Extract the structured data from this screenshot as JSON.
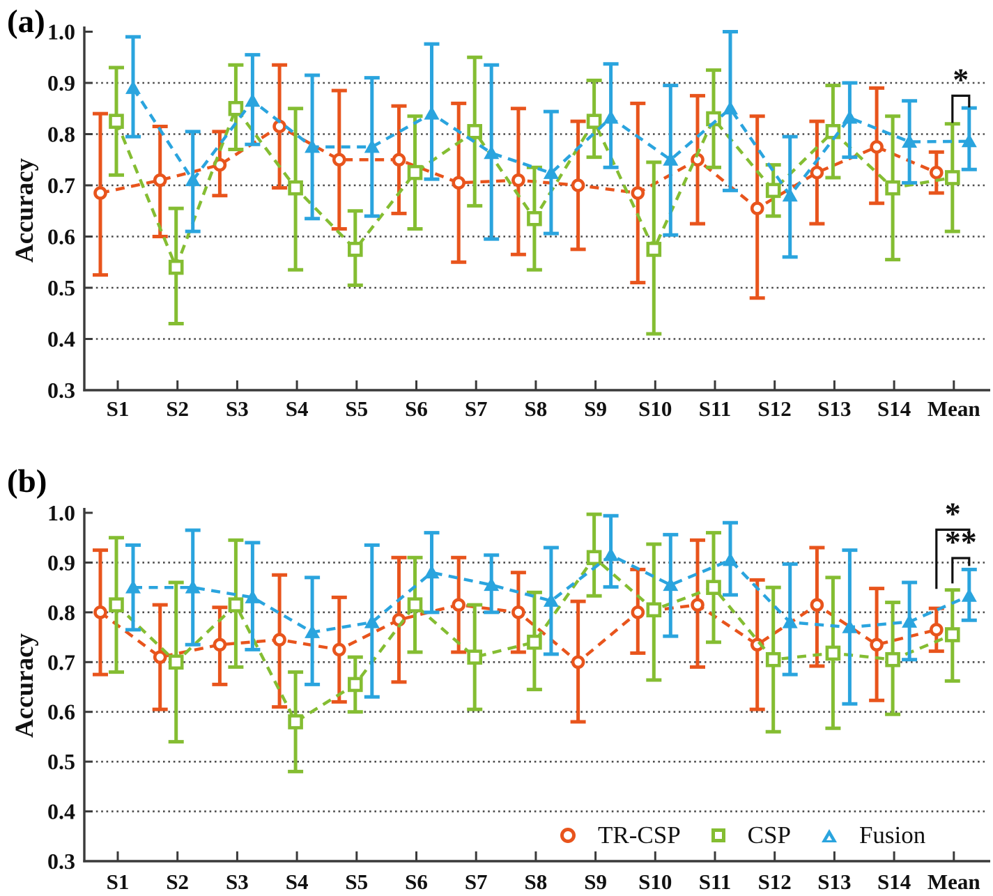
{
  "figure_titles": {
    "panel_a": "(a)",
    "panel_b": "(b)"
  },
  "ylabel": "Accuracy",
  "colors": {
    "tr_csp": "#e8541c",
    "csp": "#84bd32",
    "fusion": "#2aa4de",
    "axis": "#3a3a3a",
    "grid": "#4a4a4a",
    "significance": "#111111",
    "tick_text": "#111111"
  },
  "legend": {
    "items": [
      {
        "label": "TR-CSP",
        "marker": "circle-icon",
        "color": "#e8541c"
      },
      {
        "label": "CSP",
        "marker": "square-icon",
        "color": "#84bd32"
      },
      {
        "label": "Fusion",
        "marker": "triangle-icon",
        "color": "#2aa4de"
      }
    ]
  },
  "chart_data": [
    {
      "panel": "a",
      "type": "line",
      "subtype": "errorbar-line",
      "title": "(a)",
      "xlabel": "",
      "ylabel": "Accuracy",
      "ylim": [
        0.3,
        1.0
      ],
      "yticks": [
        1.0,
        0.9,
        0.8,
        0.7,
        0.6,
        0.5,
        0.4,
        0.3
      ],
      "ytick_labels": [
        "1.0",
        "0.9",
        "0.8",
        "0.7",
        "0.6",
        "0.5",
        "0.4",
        "0.3"
      ],
      "grid_lines": [
        0.9,
        0.8,
        0.7,
        0.6,
        0.5,
        0.4
      ],
      "grid_style": "dotted-horizontal",
      "legend_position": "none",
      "categories": [
        "S1",
        "S2",
        "S3",
        "S4",
        "S5",
        "S6",
        "S7",
        "S8",
        "S9",
        "S10",
        "S11",
        "S12",
        "S13",
        "S14",
        "Mean"
      ],
      "series": [
        {
          "name": "TR-CSP",
          "marker": "circle",
          "color": "#e8541c",
          "values": [
            0.685,
            0.71,
            0.74,
            0.815,
            0.75,
            0.75,
            0.705,
            0.71,
            0.7,
            0.685,
            0.75,
            0.655,
            0.725,
            0.775,
            0.725
          ],
          "err_low": [
            0.525,
            0.6,
            0.68,
            0.695,
            0.615,
            0.645,
            0.55,
            0.565,
            0.575,
            0.51,
            0.625,
            0.48,
            0.625,
            0.665,
            0.685
          ],
          "err_high": [
            0.84,
            0.815,
            0.805,
            0.935,
            0.885,
            0.855,
            0.86,
            0.85,
            0.825,
            0.86,
            0.875,
            0.835,
            0.825,
            0.89,
            0.765
          ]
        },
        {
          "name": "CSP",
          "marker": "square",
          "color": "#84bd32",
          "values": [
            0.825,
            0.54,
            0.85,
            0.695,
            0.575,
            0.725,
            0.805,
            0.635,
            0.825,
            0.575,
            0.83,
            0.69,
            0.805,
            0.695,
            0.715
          ],
          "err_low": [
            0.72,
            0.43,
            0.77,
            0.535,
            0.505,
            0.615,
            0.66,
            0.535,
            0.755,
            0.41,
            0.735,
            0.64,
            0.715,
            0.555,
            0.61
          ],
          "err_high": [
            0.93,
            0.655,
            0.935,
            0.85,
            0.65,
            0.835,
            0.95,
            0.735,
            0.905,
            0.745,
            0.925,
            0.74,
            0.895,
            0.835,
            0.82
          ]
        },
        {
          "name": "Fusion",
          "marker": "triangle",
          "color": "#2aa4de",
          "values": [
            0.89,
            0.71,
            0.865,
            0.775,
            0.775,
            0.84,
            0.763,
            0.724,
            0.832,
            0.75,
            0.85,
            0.68,
            0.832,
            0.785,
            0.786
          ],
          "err_low": [
            0.795,
            0.61,
            0.78,
            0.635,
            0.64,
            0.712,
            0.595,
            0.606,
            0.735,
            0.603,
            0.69,
            0.56,
            0.755,
            0.705,
            0.731
          ],
          "err_high": [
            0.99,
            0.805,
            0.955,
            0.915,
            0.91,
            0.976,
            0.935,
            0.844,
            0.937,
            0.895,
            1.0,
            0.795,
            0.9,
            0.865,
            0.851
          ]
        }
      ],
      "significance": [
        {
          "label": "*",
          "category": 14,
          "from_series": 1,
          "to_series": 2,
          "bar_y": 0.875,
          "from_drop": 0.822,
          "to_drop": 0.852
        }
      ]
    },
    {
      "panel": "b",
      "type": "line",
      "subtype": "errorbar-line",
      "title": "(b)",
      "xlabel": "",
      "ylabel": "Accuracy",
      "ylim": [
        0.3,
        1.0
      ],
      "yticks": [
        1.0,
        0.9,
        0.8,
        0.7,
        0.6,
        0.5,
        0.4,
        0.3
      ],
      "ytick_labels": [
        "1.0",
        "0.9",
        "0.8",
        "0.7",
        "0.6",
        "0.5",
        "0.4",
        "0.3"
      ],
      "grid_lines": [
        0.9,
        0.8,
        0.7,
        0.6,
        0.5,
        0.4
      ],
      "grid_style": "dotted-horizontal",
      "legend_position": "bottom-right-inside",
      "categories": [
        "S1",
        "S2",
        "S3",
        "S4",
        "S5",
        "S6",
        "S7",
        "S8",
        "S9",
        "S10",
        "S11",
        "S12",
        "S13",
        "S14",
        "Mean"
      ],
      "series": [
        {
          "name": "TR-CSP",
          "marker": "circle",
          "color": "#e8541c",
          "values": [
            0.8,
            0.71,
            0.735,
            0.745,
            0.725,
            0.785,
            0.815,
            0.8,
            0.7,
            0.8,
            0.815,
            0.735,
            0.815,
            0.735,
            0.765
          ],
          "err_low": [
            0.675,
            0.605,
            0.655,
            0.61,
            0.62,
            0.66,
            0.72,
            0.72,
            0.58,
            0.718,
            0.69,
            0.605,
            0.692,
            0.623,
            0.722
          ],
          "err_high": [
            0.925,
            0.815,
            0.81,
            0.875,
            0.83,
            0.91,
            0.91,
            0.88,
            0.822,
            0.886,
            0.945,
            0.865,
            0.93,
            0.848,
            0.808
          ]
        },
        {
          "name": "CSP",
          "marker": "square",
          "color": "#84bd32",
          "values": [
            0.815,
            0.7,
            0.815,
            0.58,
            0.655,
            0.815,
            0.71,
            0.74,
            0.91,
            0.805,
            0.85,
            0.705,
            0.718,
            0.705,
            0.755
          ],
          "err_low": [
            0.68,
            0.54,
            0.69,
            0.48,
            0.6,
            0.72,
            0.605,
            0.645,
            0.833,
            0.664,
            0.74,
            0.56,
            0.567,
            0.595,
            0.662
          ],
          "err_high": [
            0.95,
            0.86,
            0.945,
            0.68,
            0.71,
            0.91,
            0.815,
            0.84,
            0.997,
            0.937,
            0.96,
            0.85,
            0.87,
            0.82,
            0.845
          ]
        },
        {
          "name": "Fusion",
          "marker": "triangle",
          "color": "#2aa4de",
          "values": [
            0.85,
            0.85,
            0.83,
            0.76,
            0.78,
            0.88,
            0.855,
            0.823,
            0.915,
            0.855,
            0.905,
            0.78,
            0.77,
            0.781,
            0.833
          ],
          "err_low": [
            0.765,
            0.735,
            0.725,
            0.655,
            0.63,
            0.8,
            0.8,
            0.716,
            0.851,
            0.752,
            0.835,
            0.675,
            0.616,
            0.705,
            0.784
          ],
          "err_high": [
            0.935,
            0.965,
            0.94,
            0.87,
            0.935,
            0.96,
            0.915,
            0.93,
            0.994,
            0.956,
            0.98,
            0.897,
            0.925,
            0.86,
            0.886
          ]
        }
      ],
      "significance": [
        {
          "label": "*",
          "category": 14,
          "from_series": 0,
          "to_series": 2,
          "bar_y": 0.966,
          "from_drop": 0.847,
          "to_drop": 0.95
        },
        {
          "label": "**",
          "category": 14,
          "from_series": 1,
          "to_series": 2,
          "bar_y": 0.909,
          "from_drop": 0.858,
          "to_drop": 0.893
        }
      ]
    }
  ]
}
